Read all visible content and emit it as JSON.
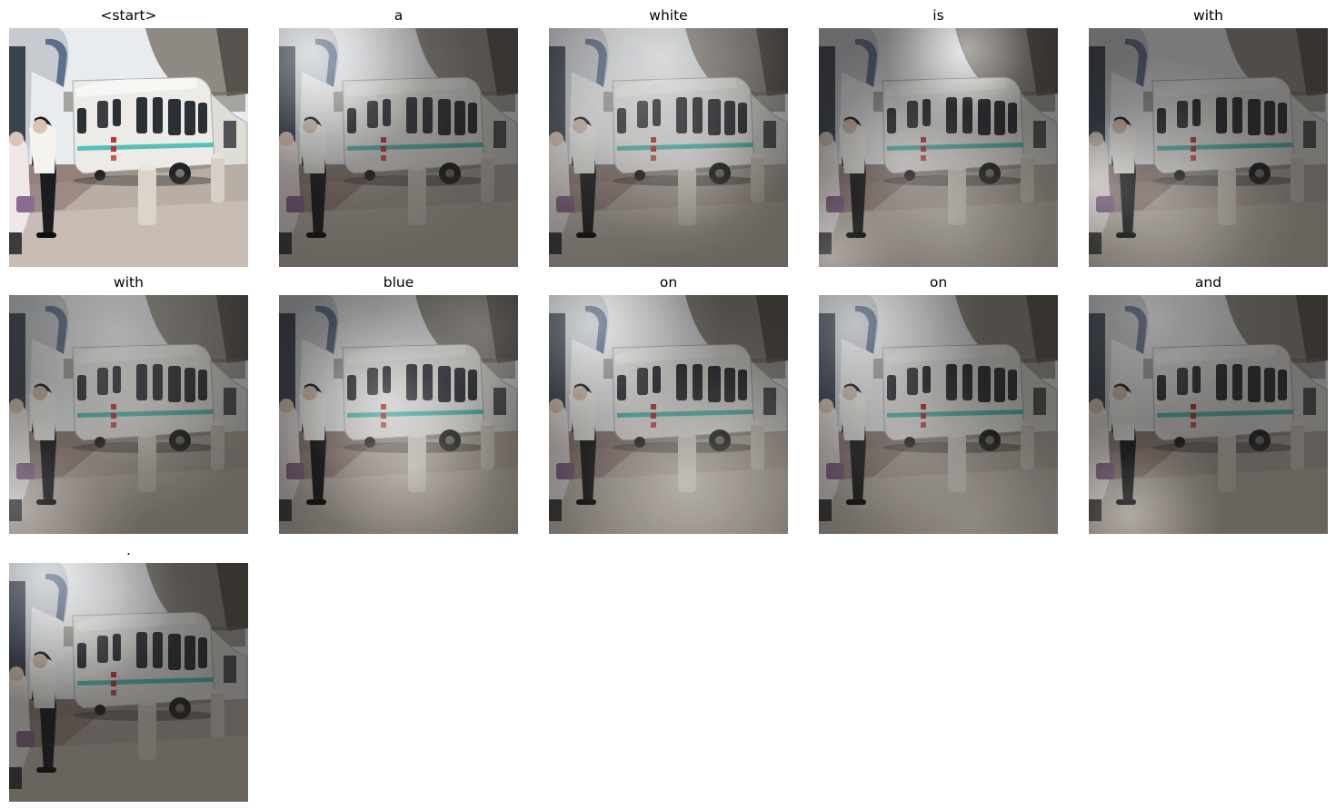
{
  "panels": [
    {
      "word": "<start>",
      "mode": "original",
      "attention": []
    },
    {
      "word": "a",
      "mode": "attention",
      "attention": [
        [
          0.13,
          0.1,
          0.5,
          1.0
        ],
        [
          0.3,
          0.22,
          0.75,
          0.35
        ]
      ]
    },
    {
      "word": "white",
      "mode": "attention",
      "attention": [
        [
          0.48,
          0.12,
          0.75,
          0.7
        ],
        [
          0.15,
          0.42,
          0.7,
          0.35
        ],
        [
          0.6,
          0.6,
          0.4,
          0.3
        ]
      ]
    },
    {
      "word": "is",
      "mode": "attention",
      "attention": [
        [
          0.62,
          0.09,
          0.35,
          0.9
        ],
        [
          0.35,
          0.55,
          0.5,
          0.35
        ],
        [
          0.55,
          0.78,
          0.6,
          0.35
        ],
        [
          0.05,
          0.95,
          0.35,
          0.5
        ]
      ]
    },
    {
      "word": "with",
      "mode": "attention",
      "attention": [
        [
          0.28,
          0.72,
          0.6,
          0.5
        ],
        [
          0.02,
          0.65,
          0.3,
          0.45
        ]
      ]
    },
    {
      "word": "with",
      "mode": "attention",
      "attention": [
        [
          0.02,
          0.88,
          0.55,
          0.6
        ],
        [
          0.45,
          0.15,
          0.8,
          0.35
        ],
        [
          0.5,
          0.55,
          0.45,
          0.2
        ]
      ]
    },
    {
      "word": "blue",
      "mode": "attention",
      "attention": [
        [
          0.45,
          0.44,
          0.55,
          0.65
        ],
        [
          0.55,
          0.72,
          0.55,
          0.5
        ],
        [
          0.85,
          0.15,
          0.45,
          0.35
        ]
      ]
    },
    {
      "word": "on",
      "mode": "attention",
      "attention": [
        [
          0.18,
          0.12,
          0.55,
          0.85
        ],
        [
          0.58,
          0.78,
          0.75,
          0.6
        ]
      ]
    },
    {
      "word": "on",
      "mode": "attention",
      "attention": [
        [
          0.15,
          0.12,
          0.55,
          0.7
        ],
        [
          0.35,
          0.6,
          0.55,
          0.35
        ],
        [
          0.65,
          0.95,
          0.55,
          0.25
        ]
      ]
    },
    {
      "word": "and",
      "mode": "attention",
      "attention": [
        [
          0.17,
          0.92,
          0.4,
          0.55
        ],
        [
          0.25,
          0.1,
          0.55,
          0.25
        ]
      ]
    },
    {
      "word": ".",
      "mode": "attention",
      "attention": [
        [
          0.15,
          0.05,
          0.55,
          0.95
        ],
        [
          0.4,
          0.2,
          0.5,
          0.3
        ]
      ]
    }
  ]
}
